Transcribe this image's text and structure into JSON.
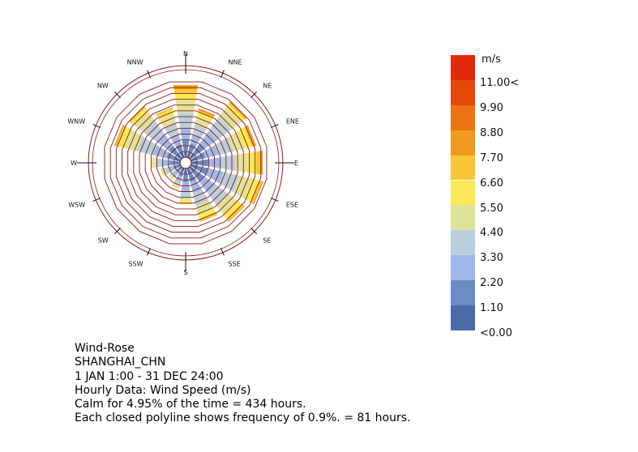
{
  "chart_data": {
    "type": "wind-rose",
    "directions": [
      "N",
      "NNE",
      "NE",
      "ENE",
      "E",
      "ESE",
      "SE",
      "SSE",
      "S",
      "SSW",
      "SW",
      "WSW",
      "W",
      "WNW",
      "NW",
      "NNW"
    ],
    "speed_bins": [
      "<0.00",
      "1.10",
      "2.20",
      "3.30",
      "4.40",
      "5.50",
      "6.60",
      "7.70",
      "8.80",
      "9.90",
      "11.00<"
    ],
    "speed_colors": [
      "#4a6aa8",
      "#6b8cc4",
      "#9fb8e8",
      "#b9cfdc",
      "#dfe39a",
      "#f9ea55",
      "#f8c637",
      "#f09a1d",
      "#ec7412",
      "#e54a0c",
      "#e2280d"
    ],
    "ring_step_percent": 0.9,
    "rings": 13,
    "frequency_percent": {
      "N": [
        0.8,
        2.6,
        4.5,
        6.8,
        8.8,
        10.0,
        10.5,
        11.1
      ],
      "NNE": [
        0.8,
        2.2,
        3.6,
        5.2,
        6.5,
        7.1,
        7.4,
        7.7
      ],
      "NE": [
        0.8,
        2.8,
        5.1,
        7.7,
        9.6,
        10.3,
        10.5,
        10.7
      ],
      "ENE": [
        0.8,
        2.3,
        4.3,
        6.6,
        8.4,
        9.5,
        9.9,
        10.2
      ],
      "E": [
        1.0,
        2.6,
        4.6,
        6.8,
        8.7,
        10.0,
        10.6,
        11.0
      ],
      "ESE": [
        0.9,
        2.7,
        5.1,
        7.6,
        9.6,
        10.7,
        11.1,
        11.3
      ],
      "SE": [
        0.8,
        2.6,
        4.8,
        7.1,
        8.8,
        9.8,
        10.2,
        10.3
      ],
      "SSE": [
        0.8,
        2.2,
        3.9,
        5.9,
        7.3,
        8.0,
        8.3,
        8.4
      ],
      "S": [
        0.8,
        2.1,
        3.6,
        4.6,
        5.0,
        5.3,
        5.5,
        5.5
      ],
      "SSW": [
        0.6,
        1.3,
        2.2,
        2.8,
        3.0,
        3.1,
        3.2,
        3.2
      ],
      "SW": [
        0.5,
        1.0,
        1.6,
        2.0,
        2.3,
        2.4,
        2.4,
        2.4
      ],
      "WSW": [
        0.5,
        1.1,
        1.9,
        2.5,
        2.9,
        3.1,
        3.1,
        3.1
      ],
      "W": [
        0.6,
        1.6,
        2.8,
        3.7,
        4.3,
        4.5,
        4.5,
        4.5
      ],
      "WNW": [
        0.8,
        2.2,
        4.3,
        6.8,
        8.8,
        9.8,
        10.1,
        10.3
      ],
      "NW": [
        0.8,
        2.4,
        4.7,
        7.0,
        8.8,
        9.5,
        9.7,
        9.8
      ],
      "NNW": [
        0.8,
        2.1,
        3.7,
        5.4,
        6.8,
        7.5,
        7.7,
        7.8
      ]
    },
    "legend": {
      "title": "m/s",
      "labels": [
        "11.00<",
        "9.90",
        "8.80",
        "7.70",
        "6.60",
        "5.50",
        "4.40",
        "3.30",
        "2.20",
        "1.10",
        "<0.00"
      ]
    }
  },
  "caption": {
    "lines": [
      "Wind-Rose",
      "SHANGHAI_CHN",
      "1 JAN 1:00 - 31 DEC 24:00",
      "Hourly Data: Wind Speed (m/s)",
      "Calm for 4.95% of the time = 434 hours.",
      "Each closed polyline shows frequency of 0.9%. = 81 hours."
    ]
  }
}
